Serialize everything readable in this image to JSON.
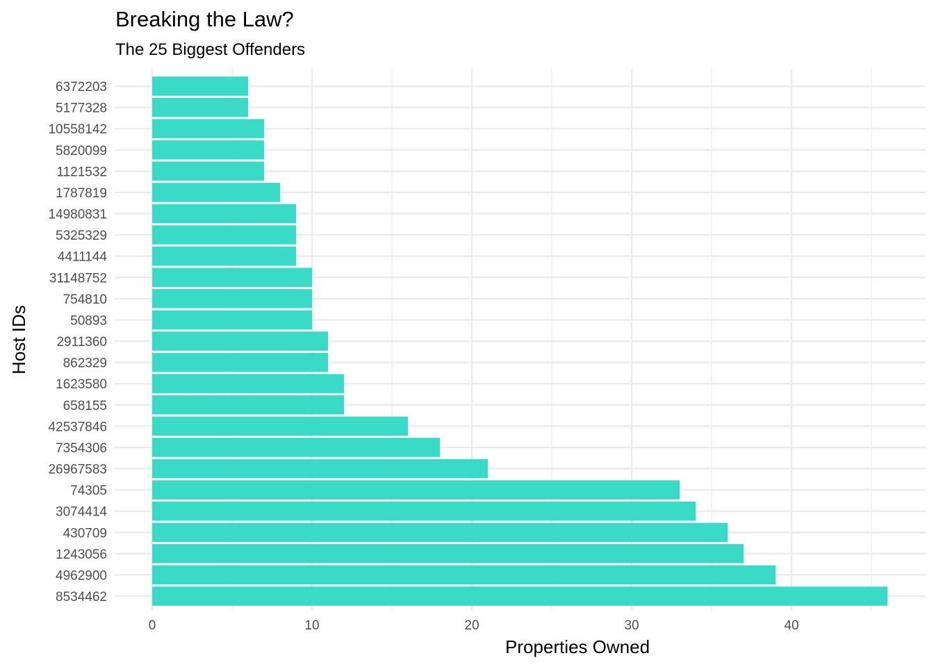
{
  "chart_data": {
    "type": "bar",
    "orientation": "horizontal",
    "title": "Breaking the Law?",
    "subtitle": "The 25 Biggest Offenders",
    "xlabel": "Properties Owned",
    "ylabel": "Host IDs",
    "xlim": [
      0,
      46
    ],
    "xticks": [
      0,
      10,
      20,
      30,
      40
    ],
    "grid": true,
    "bar_color": "#3ADBC6",
    "categories": [
      "8534462",
      "4962900",
      "1243056",
      "430709",
      "3074414",
      "74305",
      "26967583",
      "7354306",
      "42537846",
      "658155",
      "1623580",
      "862329",
      "2911360",
      "50893",
      "754810",
      "31148752",
      "4411144",
      "5325329",
      "14980831",
      "1787819",
      "1121532",
      "5820099",
      "10558142",
      "5177328",
      "6372203"
    ],
    "values": [
      46,
      39,
      37,
      36,
      34,
      33,
      21,
      18,
      16,
      12,
      12,
      11,
      11,
      10,
      10,
      10,
      9,
      9,
      9,
      8,
      7,
      7,
      7,
      6,
      6
    ]
  }
}
